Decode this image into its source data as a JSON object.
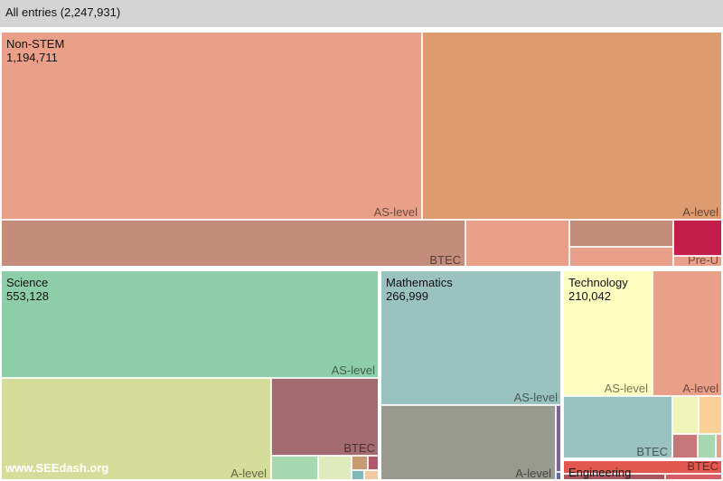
{
  "root": {
    "label": "All entries (2,247,931)"
  },
  "watermark": "www.SEEdash.org",
  "chart_data": {
    "type": "treemap",
    "total": 2247931,
    "groups": [
      {
        "name": "Non-STEM",
        "value": 1194711,
        "value_label": "1,194,711",
        "children": [
          {
            "name": "AS-level",
            "color": "#eaa088"
          },
          {
            "name": "A-level",
            "color": "#de9b70"
          },
          {
            "name": "BTEC",
            "color": "#c48c7a"
          },
          {
            "name": "",
            "color": "#eaa088"
          },
          {
            "name": "",
            "color": "#c48c7a"
          },
          {
            "name": "",
            "color": "#eaa088"
          },
          {
            "name": "",
            "color": "#c31e4b"
          },
          {
            "name": "Pre-U",
            "color": "#eaa088"
          }
        ]
      },
      {
        "name": "Science",
        "value": 553128,
        "value_label": "553,128",
        "children": [
          {
            "name": "AS-level",
            "color": "#8dcea8"
          },
          {
            "name": "A-level",
            "color": "#d6dd9a"
          },
          {
            "name": "BTEC",
            "color": "#a46b71"
          },
          {
            "name": "",
            "color": "#a6d9b0"
          },
          {
            "name": "",
            "color": "#dfeabf"
          },
          {
            "name": "",
            "color": "#c89a72"
          },
          {
            "name": "",
            "color": "#b5576a"
          },
          {
            "name": "",
            "color": "#7fb9ba"
          },
          {
            "name": "",
            "color": "#eec9a1"
          }
        ]
      },
      {
        "name": "Mathematics",
        "value": 266999,
        "value_label": "266,999",
        "children": [
          {
            "name": "AS-level",
            "color": "#9ac2bf"
          },
          {
            "name": "A-level",
            "color": "#989a8f"
          },
          {
            "name": "",
            "color": "#7c6699"
          },
          {
            "name": "",
            "color": "#5d6c9c"
          }
        ]
      },
      {
        "name": "Technology",
        "value": 210042,
        "value_label": "210,042",
        "children": [
          {
            "name": "AS-level",
            "color": "#fdfdc0"
          },
          {
            "name": "A-level",
            "color": "#eaa088"
          },
          {
            "name": "BTEC",
            "color": "#9ac2bf"
          },
          {
            "name": "",
            "color": "#f0f4b8"
          },
          {
            "name": "",
            "color": "#f9d096"
          },
          {
            "name": "",
            "color": "#c7767a"
          },
          {
            "name": "",
            "color": "#a7d9b1"
          },
          {
            "name": "",
            "color": "#e3a48b"
          }
        ]
      },
      {
        "name": "Engineering",
        "value": null,
        "value_label": "",
        "children": [
          {
            "name": "BTEC",
            "color": "#e2584f"
          },
          {
            "name": "",
            "color": "#a7565f"
          },
          {
            "name": "",
            "color": "#d55b62"
          }
        ]
      }
    ]
  }
}
